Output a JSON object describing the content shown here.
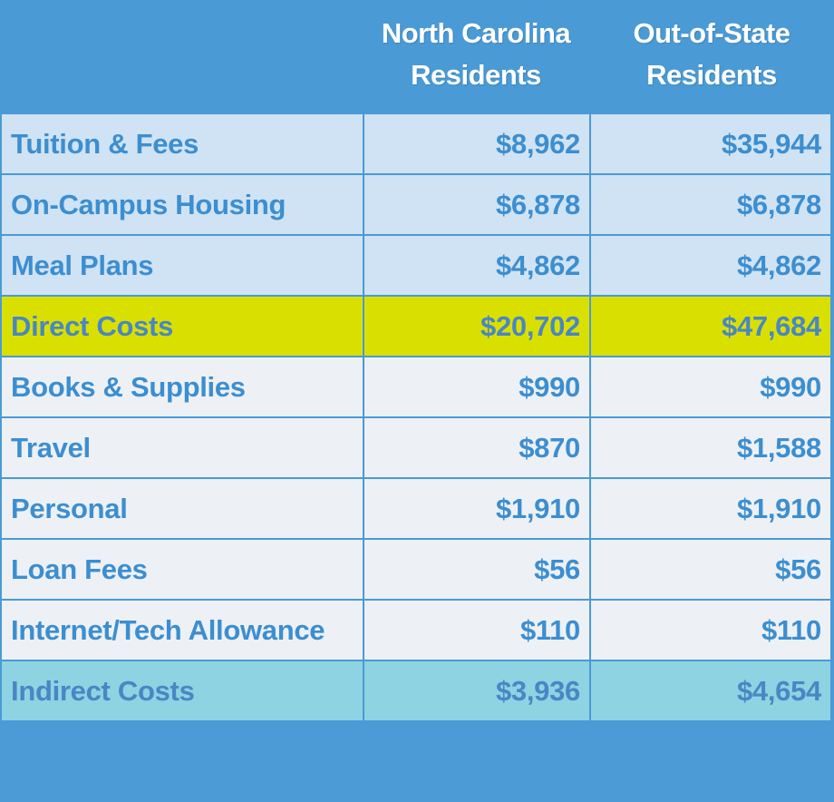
{
  "header": {
    "col_nc": "North Carolina Residents",
    "col_nc_line1": "North Carolina",
    "col_nc_line2": "Residents",
    "col_oos_line1": "Out-of-State",
    "col_oos_line2": "Residents"
  },
  "rows": [
    {
      "label": "Tuition & Fees",
      "nc": "$8,962",
      "oos": "$35,944"
    },
    {
      "label": "On-Campus Housing",
      "nc": "$6,878",
      "oos": "$6,878"
    },
    {
      "label": "Meal Plans",
      "nc": "$4,862",
      "oos": "$4,862"
    },
    {
      "label": "Direct Costs",
      "nc": "$20,702",
      "oos": "$47,684"
    },
    {
      "label": "Books & Supplies",
      "nc": "$990",
      "oos": "$990"
    },
    {
      "label": "Travel",
      "nc": "$870",
      "oos": "$1,588"
    },
    {
      "label": "Personal",
      "nc": "$1,910",
      "oos": "$1,910"
    },
    {
      "label": "Loan Fees",
      "nc": "$56",
      "oos": "$56"
    },
    {
      "label": "Internet/Tech Allowance",
      "nc": "$110",
      "oos": "$110"
    },
    {
      "label": "Indirect Costs",
      "nc": "$3,936",
      "oos": "$4,654"
    }
  ],
  "colors": {
    "frame_blue": "#4c9bd6",
    "direct_row": "#cfe3f4",
    "direct_total": "#d9e000",
    "indirect_row": "#edf1f5",
    "indirect_total": "#8dd3e2",
    "text_blue": "#3c8ed0"
  }
}
